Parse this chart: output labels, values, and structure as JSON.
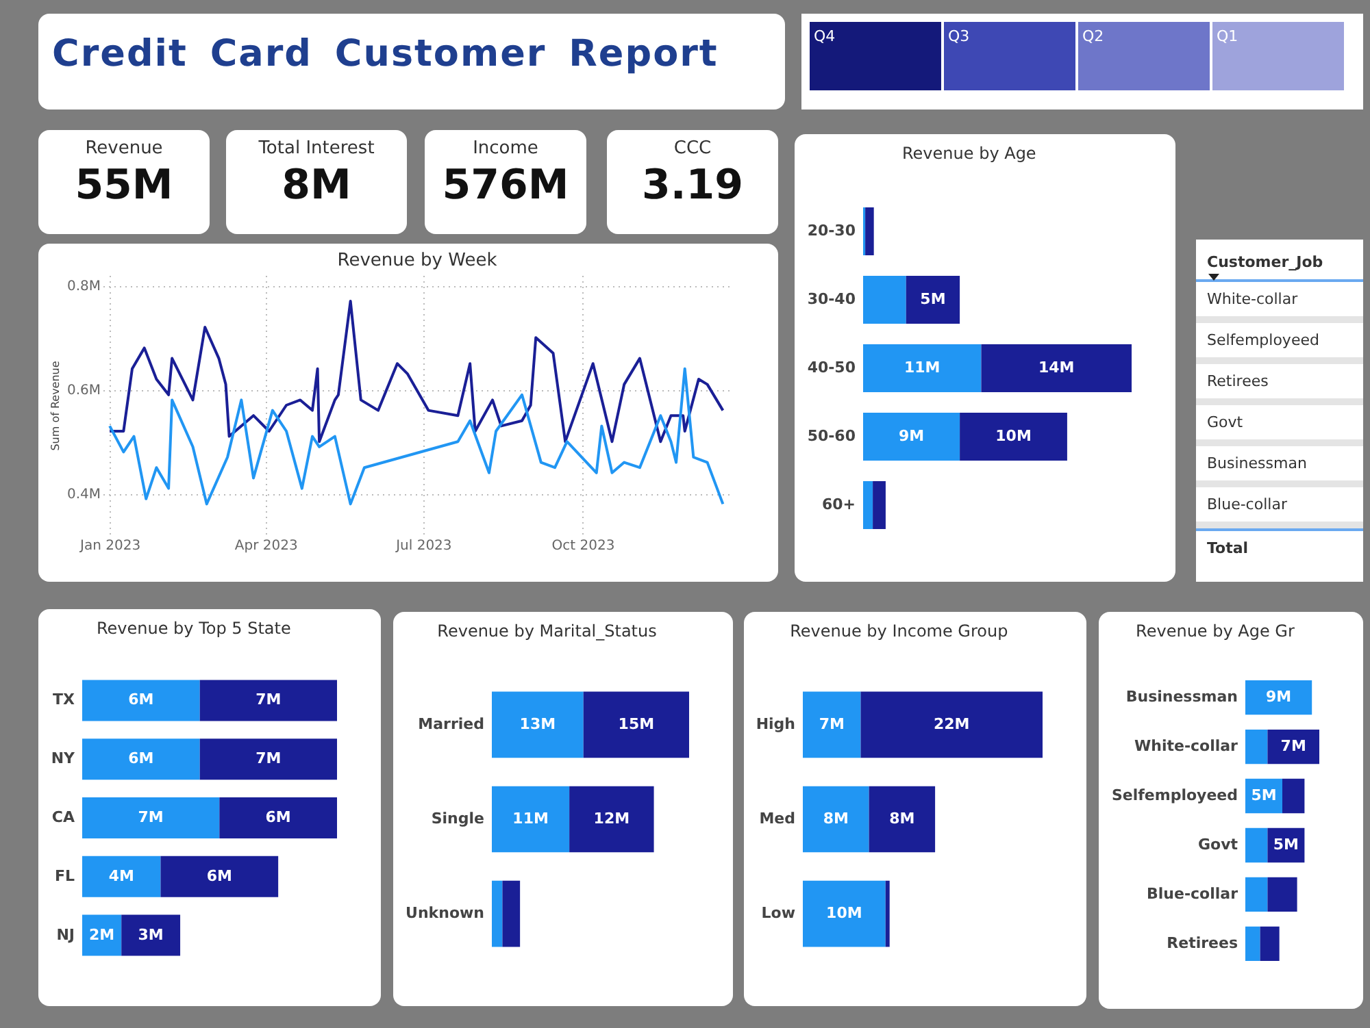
{
  "chart_data": [
    {
      "type": "other",
      "title": "Credit Card Customer Report"
    },
    {
      "type": "other",
      "categories": [
        "Q4",
        "Q3",
        "Q2",
        "Q1"
      ],
      "colors": [
        "#14197a",
        "#3e48b4",
        "#6e76c9",
        "#9ea3dc"
      ]
    },
    {
      "type": "other",
      "title": "Revenue",
      "annotations": [
        "55M"
      ]
    },
    {
      "type": "other",
      "title": "Total Interest",
      "annotations": [
        "8M"
      ]
    },
    {
      "type": "other",
      "title": "Income",
      "annotations": [
        "576M"
      ]
    },
    {
      "type": "other",
      "title": "CCC",
      "annotations": [
        "3.19"
      ]
    },
    {
      "type": "line",
      "title": "Revenue by Week",
      "ylabel": "Sum of Revenue",
      "grid": true,
      "xlim": [
        "2022-12-28",
        "2023-12-26"
      ],
      "ylim": [
        0.32,
        0.82
      ],
      "xticks": [
        {
          "value": "2023-01-01",
          "label": "Jan 2023"
        },
        {
          "value": "2023-04-01",
          "label": "Apr 2023"
        },
        {
          "value": "2023-07-01",
          "label": "Jul 2023"
        },
        {
          "value": "2023-10-01",
          "label": "Oct 2023"
        }
      ],
      "yticks": [
        {
          "value": 0.4,
          "label": "0.4M"
        },
        {
          "value": 0.6,
          "label": "0.6M"
        },
        {
          "value": 0.8,
          "label": "0.8M"
        }
      ],
      "series": [
        {
          "color": "#1a1f96",
          "x": [
            "2023-01-01",
            "2023-01-09",
            "2023-01-14",
            "2023-01-21",
            "2023-01-28",
            "2023-02-04",
            "2023-02-06",
            "2023-02-18",
            "2023-02-25",
            "2023-03-05",
            "2023-03-09",
            "2023-03-11",
            "2023-03-25",
            "2023-04-03",
            "2023-04-13",
            "2023-04-21",
            "2023-04-28",
            "2023-05-01",
            "2023-05-02",
            "2023-05-11",
            "2023-05-13",
            "2023-05-20",
            "2023-05-26",
            "2023-06-05",
            "2023-06-16",
            "2023-06-22",
            "2023-07-04",
            "2023-07-21",
            "2023-07-28",
            "2023-07-31",
            "2023-08-10",
            "2023-08-15",
            "2023-08-27",
            "2023-09-01",
            "2023-09-04",
            "2023-09-14",
            "2023-09-21",
            "2023-10-07",
            "2023-10-18",
            "2023-10-25",
            "2023-11-03",
            "2023-11-15",
            "2023-11-21",
            "2023-11-28",
            "2023-11-29",
            "2023-12-07",
            "2023-12-12",
            "2023-12-21"
          ],
          "values": [
            0.52,
            0.52,
            0.64,
            0.68,
            0.62,
            0.59,
            0.66,
            0.58,
            0.72,
            0.66,
            0.61,
            0.51,
            0.55,
            0.52,
            0.57,
            0.58,
            0.56,
            0.64,
            0.5,
            0.58,
            0.59,
            0.77,
            0.58,
            0.56,
            0.65,
            0.63,
            0.56,
            0.55,
            0.65,
            0.52,
            0.58,
            0.53,
            0.54,
            0.57,
            0.7,
            0.67,
            0.5,
            0.65,
            0.5,
            0.61,
            0.66,
            0.5,
            0.55,
            0.55,
            0.52,
            0.62,
            0.61,
            0.56
          ]
        },
        {
          "color": "#2196f3",
          "x": [
            "2023-01-01",
            "2023-01-09",
            "2023-01-15",
            "2023-01-22",
            "2023-01-28",
            "2023-02-04",
            "2023-02-06",
            "2023-02-18",
            "2023-02-26",
            "2023-03-10",
            "2023-03-18",
            "2023-03-25",
            "2023-04-05",
            "2023-04-13",
            "2023-04-22",
            "2023-04-28",
            "2023-05-02",
            "2023-05-11",
            "2023-05-20",
            "2023-05-28",
            "2023-07-21",
            "2023-07-28",
            "2023-08-08",
            "2023-08-12",
            "2023-08-27",
            "2023-09-07",
            "2023-09-15",
            "2023-09-22",
            "2023-10-09",
            "2023-10-12",
            "2023-10-18",
            "2023-10-25",
            "2023-11-03",
            "2023-11-15",
            "2023-11-21",
            "2023-11-24",
            "2023-11-29",
            "2023-12-04",
            "2023-12-12",
            "2023-12-21"
          ],
          "values": [
            0.53,
            0.48,
            0.51,
            0.39,
            0.45,
            0.41,
            0.58,
            0.49,
            0.38,
            0.47,
            0.58,
            0.43,
            0.56,
            0.52,
            0.41,
            0.51,
            0.49,
            0.51,
            0.38,
            0.45,
            0.5,
            0.54,
            0.44,
            0.52,
            0.59,
            0.46,
            0.45,
            0.5,
            0.44,
            0.53,
            0.44,
            0.46,
            0.45,
            0.55,
            0.5,
            0.46,
            0.64,
            0.47,
            0.46,
            0.38
          ]
        }
      ]
    },
    {
      "type": "bar",
      "title": "Revenue by Age",
      "orientation": "horizontal",
      "stacked": true,
      "tick_labels": "y",
      "categories": [
        "20-30",
        "30-40",
        "40-50",
        "50-60",
        "60+"
      ],
      "series": [
        {
          "color": "#2196f3",
          "values": [
            0.2,
            4,
            11,
            9,
            0.9
          ],
          "value_labels": [
            null,
            null,
            "11M",
            "9M",
            null
          ]
        },
        {
          "color": "#1a1f96",
          "values": [
            0.8,
            5,
            14,
            10,
            1.2
          ],
          "value_labels": [
            null,
            "5M",
            "14M",
            "10M",
            null
          ]
        }
      ]
    },
    {
      "type": "other",
      "annotations": [
        "Customer_Job",
        "White-collar",
        "Selfemployeed",
        "Retirees",
        "Govt",
        "Businessman",
        "Blue-collar",
        "Total"
      ]
    },
    {
      "type": "bar",
      "title": "Revenue by Top 5 State",
      "orientation": "horizontal",
      "stacked": true,
      "tick_labels": "y",
      "categories": [
        "TX",
        "NY",
        "CA",
        "FL",
        "NJ"
      ],
      "series": [
        {
          "color": "#2196f3",
          "values": [
            6,
            6,
            7,
            4,
            2
          ],
          "value_labels": [
            "6M",
            "6M",
            "7M",
            "4M",
            "2M"
          ]
        },
        {
          "color": "#1a1f96",
          "values": [
            7,
            7,
            6,
            6,
            3
          ],
          "value_labels": [
            "7M",
            "7M",
            "6M",
            "6M",
            "3M"
          ]
        }
      ]
    },
    {
      "type": "bar",
      "title": "Revenue by Marital_Status",
      "orientation": "horizontal",
      "stacked": true,
      "tick_labels": "y",
      "categories": [
        "Married",
        "Single",
        "Unknown"
      ],
      "series": [
        {
          "color": "#2196f3",
          "values": [
            13,
            11,
            1.5
          ],
          "value_labels": [
            "13M",
            "11M",
            null
          ]
        },
        {
          "color": "#1a1f96",
          "values": [
            15,
            12,
            2.5
          ],
          "value_labels": [
            "15M",
            "12M",
            null
          ]
        }
      ]
    },
    {
      "type": "bar",
      "title": "Revenue by Income Group",
      "orientation": "horizontal",
      "stacked": true,
      "tick_labels": "y",
      "categories": [
        "High",
        "Med",
        "Low"
      ],
      "series": [
        {
          "color": "#2196f3",
          "values": [
            7,
            8,
            10
          ],
          "value_labels": [
            "7M",
            "8M",
            "10M"
          ]
        },
        {
          "color": "#1a1f96",
          "values": [
            22,
            8,
            0.5
          ],
          "value_labels": [
            "22M",
            "8M",
            null
          ]
        }
      ]
    },
    {
      "type": "bar",
      "title": "Revenue by Age Gr",
      "orientation": "horizontal",
      "stacked": true,
      "tick_labels": "y",
      "categories": [
        "Businessman",
        "White-collar",
        "Selfemployeed",
        "Govt",
        "Blue-collar",
        "Retirees"
      ],
      "series": [
        {
          "color": "#2196f3",
          "values": [
            9,
            3,
            5,
            3,
            3,
            2
          ],
          "value_labels": [
            "9M",
            null,
            "5M",
            null,
            null,
            null
          ]
        },
        {
          "color": "#1a1f96",
          "values": [
            null,
            7,
            3,
            5,
            4,
            2.6
          ],
          "value_labels": [
            null,
            "7M",
            null,
            "5M",
            null,
            null
          ]
        }
      ]
    }
  ]
}
